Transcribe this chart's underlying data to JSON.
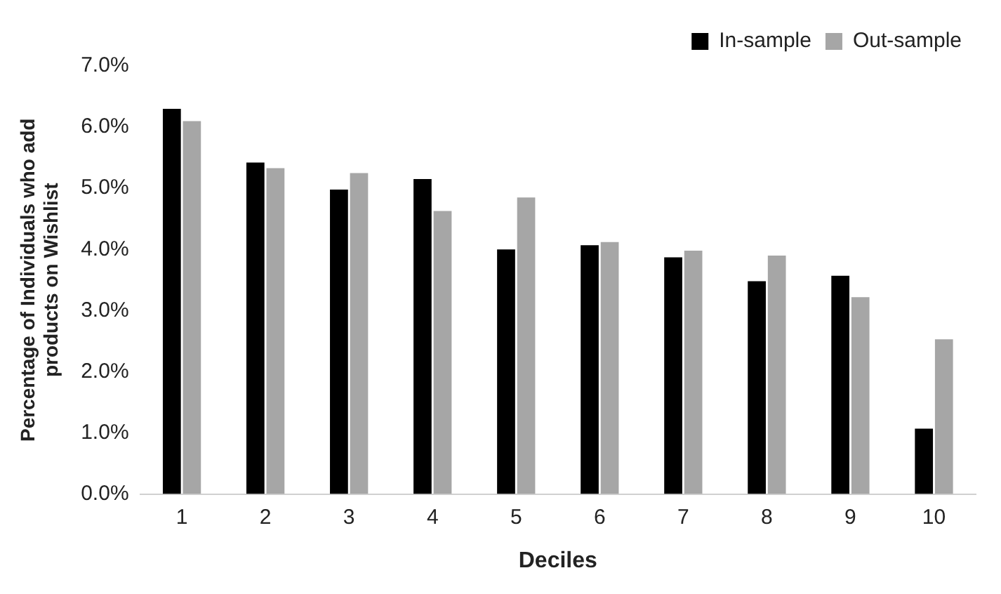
{
  "chart_data": {
    "type": "bar",
    "xlabel": "Deciles",
    "ylabel": "Percentage of Individuals who add products on Wishlist",
    "categories": [
      "1",
      "2",
      "3",
      "4",
      "5",
      "6",
      "7",
      "8",
      "9",
      "10"
    ],
    "series": [
      {
        "name": "In-sample",
        "color": "#000000",
        "values": [
          6.3,
          5.42,
          4.98,
          5.15,
          4.0,
          4.07,
          3.87,
          3.48,
          3.57,
          1.07
        ]
      },
      {
        "name": "Out-sample",
        "color": "#a6a6a6",
        "values": [
          6.1,
          5.33,
          5.25,
          4.63,
          4.85,
          4.12,
          3.98,
          3.9,
          3.22,
          2.53
        ]
      }
    ],
    "ylim": [
      0,
      7
    ],
    "yticks": [
      {
        "value": 0,
        "label": "0.0%"
      },
      {
        "value": 1,
        "label": "1.0%"
      },
      {
        "value": 2,
        "label": "2.0%"
      },
      {
        "value": 3,
        "label": "3.0%"
      },
      {
        "value": 4,
        "label": "4.0%"
      },
      {
        "value": 5,
        "label": "5.0%"
      },
      {
        "value": 6,
        "label": "6.0%"
      },
      {
        "value": 7,
        "label": "7.0%"
      }
    ],
    "grid": false,
    "legend": "top right"
  }
}
